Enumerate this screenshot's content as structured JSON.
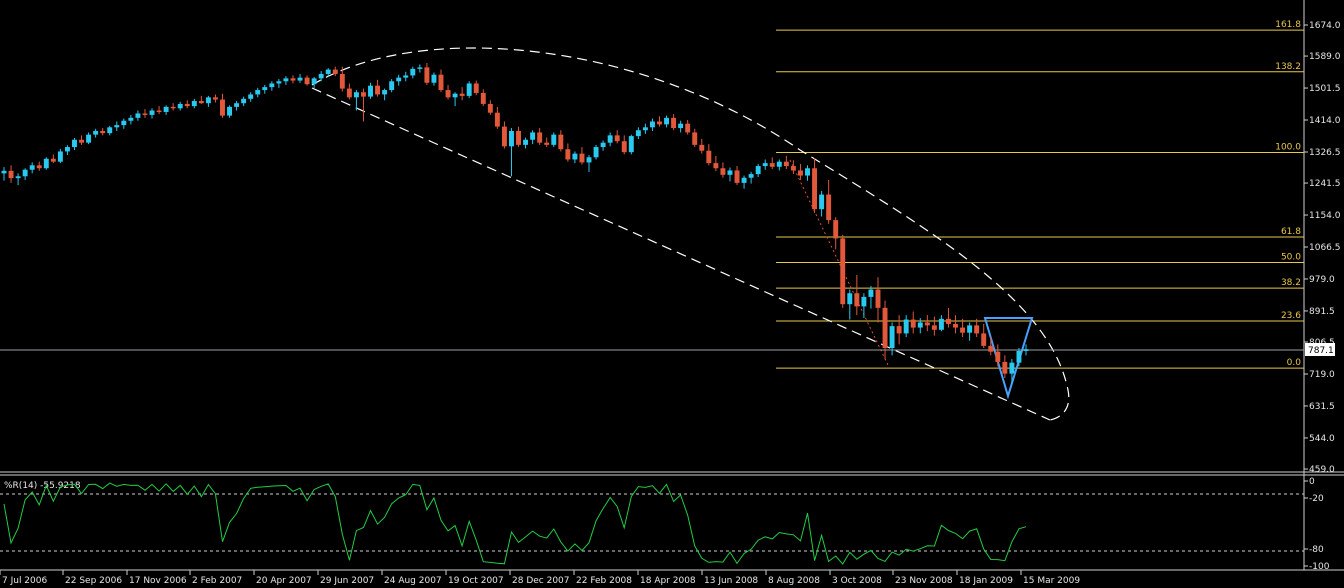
{
  "chart_data": {
    "type": "candlestick",
    "price_axis": {
      "ticks": [
        "1674.0",
        "1589.0",
        "1501.5",
        "1414.0",
        "1326.5",
        "1241.5",
        "1154.0",
        "1066.5",
        "979.0",
        "891.5",
        "806.5",
        "719.0",
        "631.5",
        "544.0",
        "459.0"
      ],
      "range": [
        459.0,
        1674.0
      ]
    },
    "current_price": "787.1",
    "x_labels": [
      "7 Jul 2006",
      "22 Sep 2006",
      "17 Nov 2006",
      "2 Feb 2007",
      "20 Apr 2007",
      "29 Jun 2007",
      "24 Aug 2007",
      "19 Oct 2007",
      "28 Dec 2007",
      "22 Feb 2008",
      "18 Apr 2008",
      "13 Jun 2008",
      "8 Aug 2008",
      "3 Oct 2008",
      "23 Nov 2008",
      "18 Jan 2009",
      "15 Mar 2009"
    ],
    "fibonacci": [
      {
        "level": "161.8",
        "price": 1660
      },
      {
        "level": "138.2",
        "price": 1546
      },
      {
        "level": "100.0",
        "price": 1325
      },
      {
        "level": "61.8",
        "price": 1094
      },
      {
        "level": "50.0",
        "price": 1024
      },
      {
        "level": "38.2",
        "price": 954
      },
      {
        "level": "23.6",
        "price": 864
      },
      {
        "level": "0.0",
        "price": 735
      }
    ],
    "candles": [
      [
        1268,
        1285,
        1248,
        1275
      ],
      [
        1275,
        1290,
        1242,
        1255
      ],
      [
        1255,
        1268,
        1236,
        1260
      ],
      [
        1260,
        1282,
        1250,
        1278
      ],
      [
        1278,
        1298,
        1268,
        1290
      ],
      [
        1290,
        1300,
        1275,
        1282
      ],
      [
        1282,
        1312,
        1278,
        1308
      ],
      [
        1308,
        1320,
        1296,
        1300
      ],
      [
        1300,
        1335,
        1296,
        1328
      ],
      [
        1328,
        1345,
        1318,
        1340
      ],
      [
        1340,
        1365,
        1332,
        1360
      ],
      [
        1360,
        1372,
        1346,
        1352
      ],
      [
        1352,
        1380,
        1348,
        1374
      ],
      [
        1374,
        1390,
        1366,
        1384
      ],
      [
        1384,
        1392,
        1372,
        1378
      ],
      [
        1378,
        1398,
        1372,
        1394
      ],
      [
        1394,
        1410,
        1384,
        1400
      ],
      [
        1400,
        1418,
        1390,
        1412
      ],
      [
        1412,
        1428,
        1402,
        1420
      ],
      [
        1420,
        1440,
        1412,
        1432
      ],
      [
        1432,
        1444,
        1420,
        1428
      ],
      [
        1428,
        1446,
        1418,
        1440
      ],
      [
        1440,
        1452,
        1430,
        1436
      ],
      [
        1436,
        1454,
        1428,
        1450
      ],
      [
        1450,
        1460,
        1440,
        1446
      ],
      [
        1446,
        1464,
        1440,
        1458
      ],
      [
        1458,
        1468,
        1446,
        1452
      ],
      [
        1452,
        1472,
        1446,
        1466
      ],
      [
        1466,
        1480,
        1458,
        1460
      ],
      [
        1460,
        1480,
        1450,
        1476
      ],
      [
        1476,
        1484,
        1462,
        1470
      ],
      [
        1470,
        1486,
        1420,
        1426
      ],
      [
        1426,
        1454,
        1420,
        1450
      ],
      [
        1450,
        1466,
        1440,
        1460
      ],
      [
        1460,
        1478,
        1452,
        1472
      ],
      [
        1472,
        1490,
        1464,
        1484
      ],
      [
        1484,
        1502,
        1476,
        1496
      ],
      [
        1496,
        1510,
        1486,
        1504
      ],
      [
        1504,
        1520,
        1494,
        1514
      ],
      [
        1514,
        1526,
        1502,
        1520
      ],
      [
        1520,
        1534,
        1510,
        1528
      ],
      [
        1528,
        1536,
        1514,
        1522
      ],
      [
        1522,
        1540,
        1516,
        1530
      ],
      [
        1530,
        1536,
        1508,
        1512
      ],
      [
        1512,
        1532,
        1502,
        1528
      ],
      [
        1528,
        1548,
        1520,
        1540
      ],
      [
        1540,
        1556,
        1532,
        1552
      ],
      [
        1552,
        1560,
        1534,
        1540
      ],
      [
        1540,
        1560,
        1492,
        1500
      ],
      [
        1500,
        1514,
        1470,
        1476
      ],
      [
        1476,
        1496,
        1440,
        1490
      ],
      [
        1490,
        1500,
        1410,
        1478
      ],
      [
        1478,
        1516,
        1472,
        1508
      ],
      [
        1508,
        1524,
        1478,
        1484
      ],
      [
        1484,
        1500,
        1468,
        1496
      ],
      [
        1496,
        1526,
        1490,
        1520
      ],
      [
        1520,
        1538,
        1508,
        1530
      ],
      [
        1530,
        1546,
        1520,
        1536
      ],
      [
        1536,
        1560,
        1528,
        1554
      ],
      [
        1554,
        1566,
        1544,
        1558
      ],
      [
        1558,
        1570,
        1510,
        1516
      ],
      [
        1516,
        1544,
        1508,
        1538
      ],
      [
        1538,
        1552,
        1490,
        1496
      ],
      [
        1496,
        1510,
        1470,
        1476
      ],
      [
        1476,
        1490,
        1452,
        1486
      ],
      [
        1486,
        1504,
        1468,
        1480
      ],
      [
        1480,
        1520,
        1474,
        1514
      ],
      [
        1514,
        1522,
        1482,
        1488
      ],
      [
        1488,
        1498,
        1452,
        1458
      ],
      [
        1458,
        1468,
        1428,
        1434
      ],
      [
        1434,
        1450,
        1390,
        1396
      ],
      [
        1396,
        1410,
        1336,
        1342
      ],
      [
        1342,
        1392,
        1260,
        1384
      ],
      [
        1384,
        1396,
        1340,
        1346
      ],
      [
        1346,
        1366,
        1336,
        1360
      ],
      [
        1360,
        1386,
        1348,
        1380
      ],
      [
        1380,
        1392,
        1346,
        1352
      ],
      [
        1352,
        1366,
        1340,
        1346
      ],
      [
        1346,
        1380,
        1340,
        1374
      ],
      [
        1374,
        1386,
        1328,
        1334
      ],
      [
        1334,
        1350,
        1300,
        1306
      ],
      [
        1306,
        1328,
        1296,
        1322
      ],
      [
        1322,
        1340,
        1292,
        1298
      ],
      [
        1298,
        1318,
        1272,
        1312
      ],
      [
        1312,
        1346,
        1306,
        1340
      ],
      [
        1340,
        1358,
        1330,
        1352
      ],
      [
        1352,
        1380,
        1342,
        1372
      ],
      [
        1372,
        1386,
        1350,
        1356
      ],
      [
        1356,
        1372,
        1320,
        1326
      ],
      [
        1326,
        1374,
        1320,
        1370
      ],
      [
        1370,
        1394,
        1362,
        1386
      ],
      [
        1386,
        1404,
        1376,
        1394
      ],
      [
        1394,
        1418,
        1384,
        1410
      ],
      [
        1410,
        1424,
        1396,
        1402
      ],
      [
        1402,
        1426,
        1394,
        1420
      ],
      [
        1420,
        1430,
        1386,
        1392
      ],
      [
        1392,
        1412,
        1380,
        1404
      ],
      [
        1404,
        1414,
        1374,
        1380
      ],
      [
        1380,
        1390,
        1340,
        1346
      ],
      [
        1346,
        1362,
        1322,
        1330
      ],
      [
        1330,
        1348,
        1290,
        1296
      ],
      [
        1296,
        1316,
        1274,
        1282
      ],
      [
        1282,
        1298,
        1256,
        1264
      ],
      [
        1264,
        1284,
        1246,
        1276
      ],
      [
        1276,
        1288,
        1236,
        1242
      ],
      [
        1242,
        1262,
        1226,
        1256
      ],
      [
        1256,
        1272,
        1240,
        1266
      ],
      [
        1266,
        1294,
        1258,
        1288
      ],
      [
        1288,
        1306,
        1278,
        1296
      ],
      [
        1296,
        1312,
        1280,
        1286
      ],
      [
        1286,
        1306,
        1276,
        1300
      ],
      [
        1300,
        1316,
        1280,
        1288
      ],
      [
        1288,
        1304,
        1266,
        1276
      ],
      [
        1276,
        1294,
        1250,
        1262
      ],
      [
        1262,
        1290,
        1248,
        1282
      ],
      [
        1282,
        1310,
        1160,
        1170
      ],
      [
        1170,
        1220,
        1150,
        1210
      ],
      [
        1210,
        1250,
        1130,
        1140
      ],
      [
        1140,
        1148,
        1060,
        1090
      ],
      [
        1090,
        1100,
        900,
        910
      ],
      [
        910,
        950,
        868,
        940
      ],
      [
        940,
        990,
        880,
        904
      ],
      [
        904,
        940,
        872,
        930
      ],
      [
        930,
        960,
        898,
        950
      ],
      [
        950,
        984,
        860,
        900
      ],
      [
        900,
        920,
        760,
        790
      ],
      [
        790,
        860,
        770,
        850
      ],
      [
        850,
        880,
        800,
        830
      ],
      [
        830,
        880,
        820,
        868
      ],
      [
        868,
        890,
        830,
        846
      ],
      [
        846,
        872,
        830,
        860
      ],
      [
        860,
        880,
        836,
        852
      ],
      [
        852,
        876,
        824,
        840
      ],
      [
        840,
        880,
        836,
        870
      ],
      [
        870,
        900,
        846,
        856
      ],
      [
        856,
        880,
        830,
        846
      ],
      [
        846,
        870,
        820,
        832
      ],
      [
        832,
        860,
        810,
        852
      ],
      [
        852,
        870,
        820,
        830
      ],
      [
        830,
        856,
        790,
        796
      ],
      [
        796,
        820,
        770,
        780
      ],
      [
        780,
        800,
        740,
        752
      ],
      [
        752,
        770,
        708,
        720
      ],
      [
        720,
        760,
        690,
        750
      ],
      [
        750,
        790,
        740,
        782
      ],
      [
        782,
        800,
        770,
        787
      ]
    ],
    "williams_r": {
      "label": "%R(14) -55.9218",
      "ticks": [
        "0",
        "-20",
        "-80",
        "-100"
      ],
      "range": [
        -100,
        0
      ]
    }
  }
}
